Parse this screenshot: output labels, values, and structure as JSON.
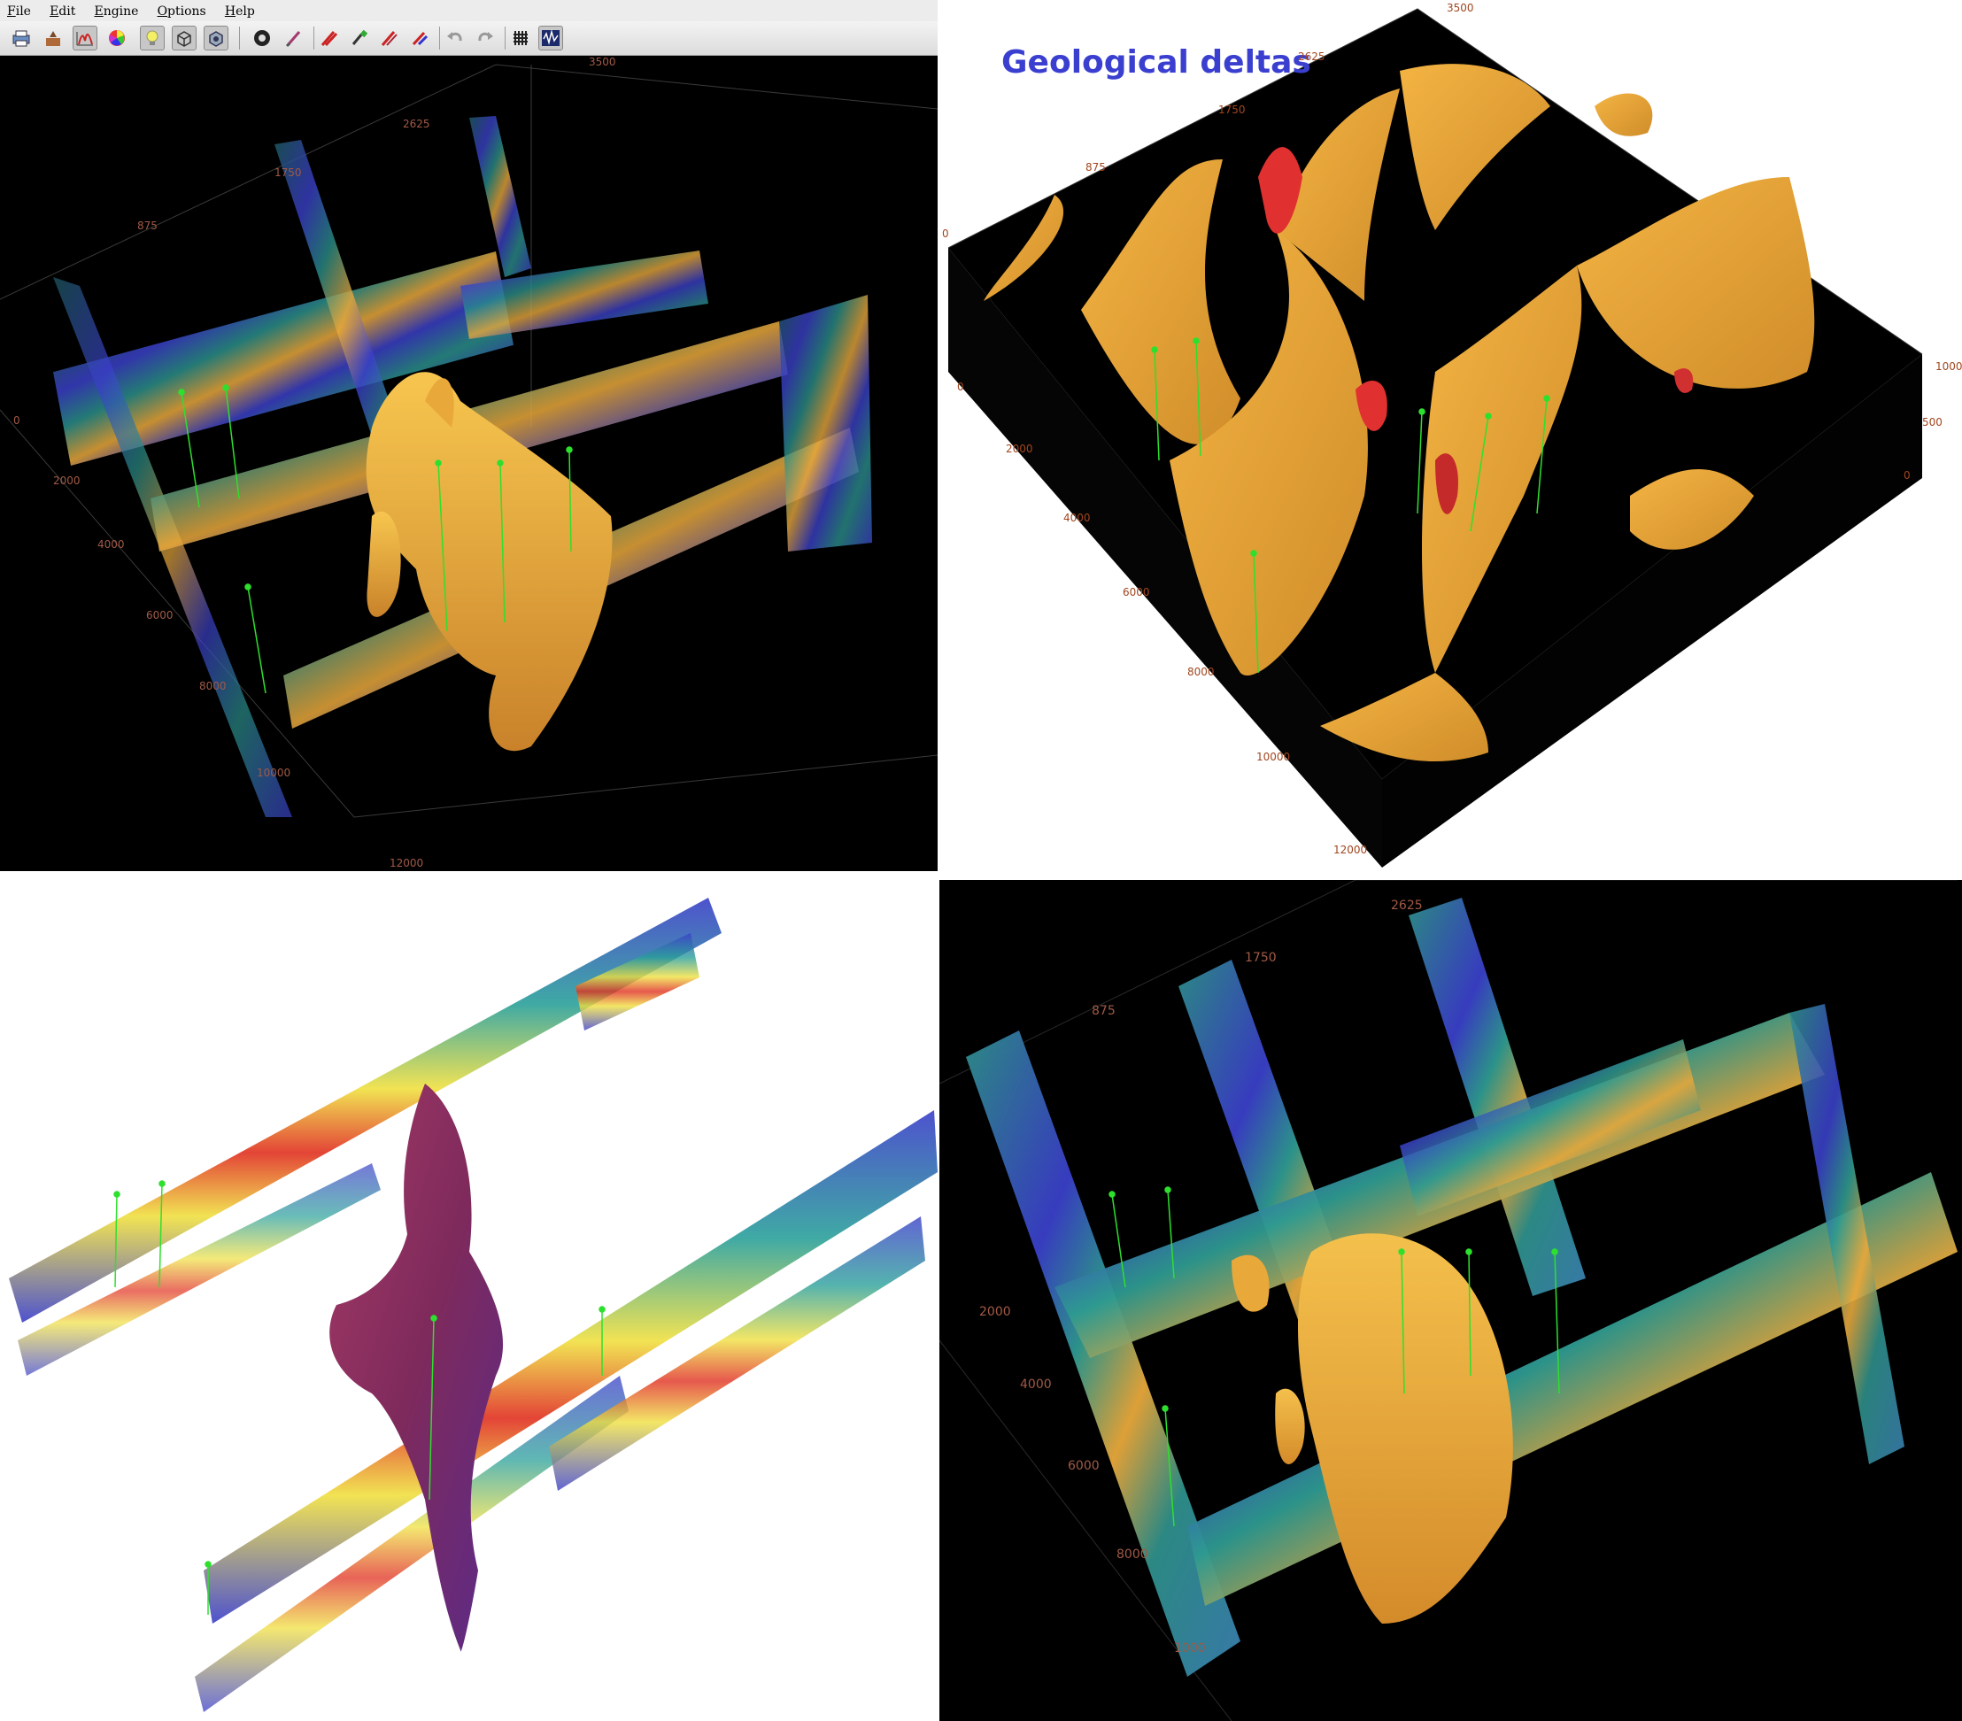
{
  "menu": {
    "items": [
      "File",
      "Edit",
      "Engine",
      "Options",
      "Help"
    ]
  },
  "toolbar": {
    "buttons": [
      {
        "icon": "print-icon"
      },
      {
        "icon": "import-icon"
      },
      {
        "icon": "histogram-icon",
        "pressed": true
      },
      {
        "icon": "color-wheel-icon"
      },
      {
        "icon": "lightbulb-icon",
        "pressed": true
      },
      {
        "icon": "box-icon",
        "pressed": true
      },
      {
        "icon": "settings-cube-icon",
        "pressed": true
      },
      {
        "icon": "camera-lens-icon"
      },
      {
        "icon": "brush-icon"
      },
      {
        "icon": "pencil-red-icon"
      },
      {
        "icon": "eraser-icon"
      },
      {
        "icon": "pencil-pair-icon"
      },
      {
        "icon": "magnet-icon"
      },
      {
        "icon": "undo-icon"
      },
      {
        "icon": "redo-icon"
      },
      {
        "icon": "grid-icon"
      },
      {
        "icon": "waveform-icon",
        "pressed": true
      }
    ]
  },
  "panels": {
    "top_left": {
      "axis_labels_top": [
        "3500",
        "2625",
        "1750",
        "875",
        "0"
      ],
      "axis_labels_side": [
        "2000",
        "4000",
        "6000",
        "8000",
        "10000",
        "12000"
      ]
    },
    "top_right": {
      "title": "Geological deltas",
      "axis_labels_top": [
        "3500",
        "2625",
        "1750",
        "875",
        "0"
      ],
      "axis_labels_left": [
        "0",
        "2000",
        "4000",
        "6000",
        "8000",
        "10000",
        "12000"
      ],
      "axis_labels_right": [
        "1000",
        "500",
        "0"
      ]
    },
    "bottom_right": {
      "axis_labels_top": [
        "2625",
        "1750",
        "875"
      ],
      "axis_labels_side": [
        "2000",
        "4000",
        "6000",
        "8000",
        "1000"
      ]
    }
  },
  "colors": {
    "background_dark": "#000000",
    "isosurface_orange": "#e9a83a",
    "isosurface_red": "#e03030",
    "geobody_maroon": "#8e2a4c",
    "seismic_teal": "#2a8f8a",
    "seismic_blue": "#3a3fc8",
    "title_blue": "#3a3fd0",
    "well_green": "#2ee02e",
    "axis_label": "#a05a46"
  }
}
